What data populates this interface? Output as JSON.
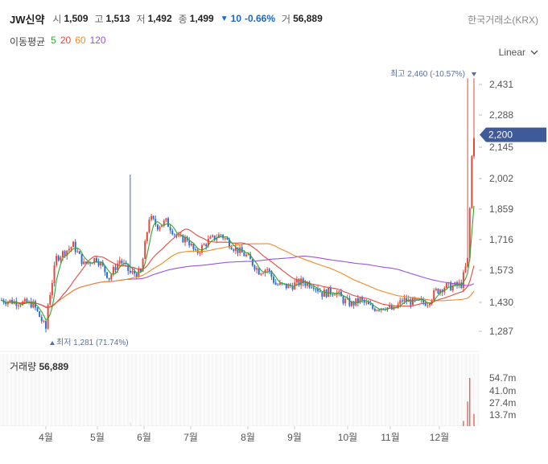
{
  "header": {
    "name": "JW신약",
    "open_label": "시",
    "open": "1,509",
    "high_label": "고",
    "high": "1,513",
    "low_label": "저",
    "low": "1,492",
    "close_label": "종",
    "close": "1,499",
    "change": "10",
    "change_pct": "-0.66%",
    "vol_label": "거",
    "volume": "56,889",
    "exchange": "한국거래소(KRX)",
    "down_color": "#1a66d1"
  },
  "ma_legend": {
    "label": "이동평균",
    "items": [
      {
        "period": "5",
        "color": "#2fa830"
      },
      {
        "period": "20",
        "color": "#e8483c"
      },
      {
        "period": "60",
        "color": "#f08a2a"
      },
      {
        "period": "120",
        "color": "#9b52e0"
      }
    ]
  },
  "scale_mode": "Linear",
  "volume_header": {
    "label": "거래량",
    "value": "56,889"
  },
  "chart_data": {
    "type": "candlestick",
    "price_axis": {
      "ticks": [
        "2,431",
        "2,288",
        "2,145",
        "2,002",
        "1,859",
        "1,716",
        "1,573",
        "1,430",
        "1,287"
      ],
      "ylim": [
        1250,
        2520
      ]
    },
    "current_price_label": "2,200",
    "high_marker": {
      "text": "최고 2,460 (-10.57%)",
      "value": 2460,
      "month": "12월"
    },
    "low_marker": {
      "text": "최저 1,281 (71.74%)",
      "value": 1281,
      "month": "3월"
    },
    "x_labels": [
      "4월",
      "5월",
      "6월",
      "7월",
      "8월",
      "9월",
      "10월",
      "11월",
      "12월"
    ],
    "volume_axis": {
      "ticks": [
        "54.7m",
        "41.0m",
        "27.4m",
        "13.7m"
      ]
    },
    "colors": {
      "up": "#e8483c",
      "down": "#2d6fd6",
      "ma5": "#2fa830",
      "ma20": "#e8483c",
      "ma60": "#f08a2a",
      "ma120": "#9b52e0",
      "volume": "#e0e0e0"
    },
    "price_path": [
      [
        0,
        1440
      ],
      [
        8,
        1430
      ],
      [
        15,
        1420
      ],
      [
        21,
        1300
      ],
      [
        22,
        1420
      ],
      [
        26,
        1630
      ],
      [
        34,
        1690
      ],
      [
        39,
        1600
      ],
      [
        45,
        1630
      ],
      [
        51,
        1540
      ],
      [
        56,
        1620
      ],
      [
        61,
        1560
      ],
      [
        66,
        1560
      ],
      [
        70,
        1820
      ],
      [
        74,
        1780
      ],
      [
        78,
        1800
      ],
      [
        84,
        1720
      ],
      [
        88,
        1720
      ],
      [
        92,
        1650
      ],
      [
        98,
        1710
      ],
      [
        104,
        1740
      ],
      [
        110,
        1680
      ],
      [
        116,
        1640
      ],
      [
        122,
        1570
      ],
      [
        126,
        1580
      ],
      [
        130,
        1510
      ],
      [
        136,
        1500
      ],
      [
        142,
        1520
      ],
      [
        148,
        1510
      ],
      [
        152,
        1470
      ],
      [
        158,
        1480
      ],
      [
        162,
        1440
      ],
      [
        166,
        1420
      ],
      [
        170,
        1440
      ],
      [
        176,
        1400
      ],
      [
        182,
        1410
      ],
      [
        186,
        1390
      ],
      [
        190,
        1440
      ],
      [
        196,
        1430
      ],
      [
        202,
        1430
      ],
      [
        206,
        1480
      ],
      [
        210,
        1500
      ],
      [
        214,
        1500
      ],
      [
        218,
        1510
      ],
      [
        221,
        1620
      ],
      [
        223,
        2100
      ],
      [
        224,
        2200
      ]
    ],
    "spikes": [
      {
        "t": 21,
        "value": 1281
      },
      {
        "t": 61,
        "value": 2020
      },
      {
        "t": 221,
        "value": 2460
      },
      {
        "t": 224,
        "value": 2460
      }
    ],
    "volume_bars": [
      {
        "t": 61,
        "value": 4.2
      },
      {
        "t": 66,
        "value": 2.0
      },
      {
        "t": 221,
        "value": 28.0
      },
      {
        "t": 222,
        "value": 54.7
      },
      {
        "t": 224,
        "value": 14.0
      },
      {
        "t": 219,
        "value": 6.0
      }
    ]
  }
}
